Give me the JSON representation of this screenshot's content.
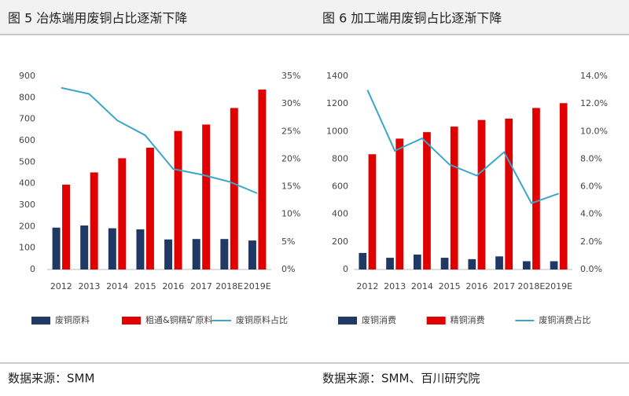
{
  "header": {
    "left": "图 5  冶炼端用废铜占比逐渐下降",
    "right": "图 6 加工端用废铜占比逐渐下降"
  },
  "footer": {
    "left": "数据来源：SMM",
    "right": "数据来源：SMM、百川研究院"
  },
  "chart_data": [
    {
      "type": "bar",
      "categories": [
        "2012",
        "2013",
        "2014",
        "2015",
        "2016",
        "2017",
        "2018E",
        "2019E"
      ],
      "ylim": [
        0,
        900
      ],
      "yticks": [
        0,
        100,
        200,
        300,
        400,
        500,
        600,
        700,
        800,
        900
      ],
      "y2lim": [
        0,
        35
      ],
      "y2ticks": [
        {
          "value": 0,
          "label": "0%"
        },
        {
          "value": 5,
          "label": "5%"
        },
        {
          "value": 10,
          "label": "10%"
        },
        {
          "value": 15,
          "label": "15%"
        },
        {
          "value": 20,
          "label": "20%"
        },
        {
          "value": 25,
          "label": "25%"
        },
        {
          "value": 30,
          "label": "30%"
        },
        {
          "value": 35,
          "label": "35%"
        }
      ],
      "series": [
        {
          "name": "废铜原料",
          "color": "#1f3864",
          "values": [
            195,
            205,
            192,
            187,
            140,
            142,
            142,
            135
          ]
        },
        {
          "name": "粗通&铜精矿原料",
          "color": "#e00000",
          "values": [
            395,
            452,
            518,
            567,
            645,
            675,
            752,
            838
          ]
        },
        {
          "name": "废铜原料占比",
          "color": "#3aa6c9",
          "axis": "y2",
          "type": "line",
          "values": [
            32.9,
            31.8,
            27,
            24.3,
            18.2,
            17.2,
            15.9,
            13.8
          ]
        }
      ]
    },
    {
      "type": "bar",
      "categories": [
        "2012",
        "2013",
        "2014",
        "2015",
        "2016",
        "2017",
        "2018E",
        "2019E"
      ],
      "ylim": [
        0,
        1400
      ],
      "yticks": [
        0,
        200,
        400,
        600,
        800,
        1000,
        1200,
        1400
      ],
      "y2lim": [
        0,
        14
      ],
      "y2ticks": [
        {
          "value": 0,
          "label": "0.0%"
        },
        {
          "value": 2,
          "label": "2.0%"
        },
        {
          "value": 4,
          "label": "4.0%"
        },
        {
          "value": 6,
          "label": "6.0%"
        },
        {
          "value": 8,
          "label": "8.0%"
        },
        {
          "value": 10,
          "label": "10.0%"
        },
        {
          "value": 12,
          "label": "12.0%"
        },
        {
          "value": 14,
          "label": "14.0%"
        }
      ],
      "series": [
        {
          "name": "废铜消费",
          "color": "#1f3864",
          "values": [
            120,
            85,
            108,
            85,
            75,
            95,
            60,
            60
          ]
        },
        {
          "name": "精铜消费",
          "color": "#e00000",
          "values": [
            835,
            948,
            995,
            1035,
            1083,
            1093,
            1170,
            1205
          ]
        },
        {
          "name": "废铜消费占比",
          "color": "#3aa6c9",
          "axis": "y2",
          "type": "line",
          "values": [
            13.0,
            8.6,
            9.5,
            7.6,
            6.8,
            8.5,
            4.8,
            5.5
          ]
        }
      ]
    }
  ]
}
